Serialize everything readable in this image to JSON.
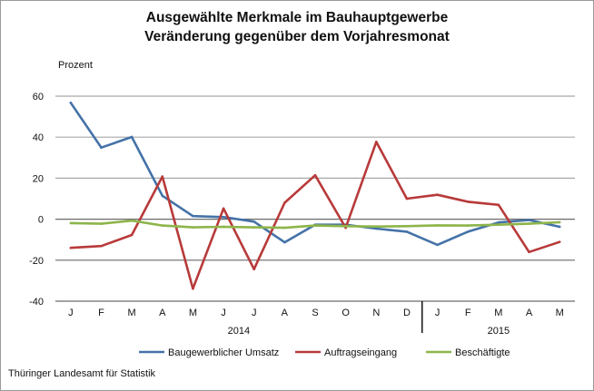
{
  "chart_data": {
    "type": "line",
    "title": "Ausgewählte Merkmale im Bauhauptgewerbe",
    "subtitle": "Veränderung gegenüber dem Vorjahresmonat",
    "ylabel": "Prozent",
    "xlabel": "",
    "ylim": [
      -40,
      60
    ],
    "yticks": [
      -40,
      -20,
      0,
      20,
      40,
      60
    ],
    "grid": true,
    "legend_position": "bottom",
    "categories": [
      "J",
      "F",
      "M",
      "A",
      "M",
      "J",
      "J",
      "A",
      "S",
      "O",
      "N",
      "D",
      "J",
      "F",
      "M",
      "A",
      "M"
    ],
    "year_labels": [
      {
        "label": "2014",
        "from": 0,
        "to": 11
      },
      {
        "label": "2015",
        "from": 12,
        "to": 16
      }
    ],
    "series": [
      {
        "name": "Baugewerblicher Umsatz",
        "color": "#4472a8",
        "values": [
          56.8,
          34.9,
          40.1,
          11.4,
          1.5,
          1.0,
          -1.2,
          -11.3,
          -2.7,
          -2.7,
          -4.6,
          -6.1,
          -12.5,
          -6.1,
          -1.6,
          -0.4,
          -3.7
        ]
      },
      {
        "name": "Auftragseingang",
        "color": "#b83a3a",
        "values": [
          -14.0,
          -13.1,
          -7.7,
          20.8,
          -33.9,
          5.2,
          -24.4,
          8.0,
          21.4,
          -4.2,
          37.7,
          10.0,
          11.9,
          8.5,
          7.0,
          -16.0,
          -11.1
        ]
      },
      {
        "name": "Beschäftigte",
        "color": "#8db54a",
        "values": [
          -1.9,
          -2.2,
          -0.7,
          -3.1,
          -4.0,
          -3.7,
          -4.0,
          -4.2,
          -3.1,
          -3.4,
          -3.6,
          -3.4,
          -3.0,
          -3.1,
          -2.7,
          -2.2,
          -1.5
        ]
      }
    ]
  },
  "source": "Thüringer Landesamt für Statistik"
}
